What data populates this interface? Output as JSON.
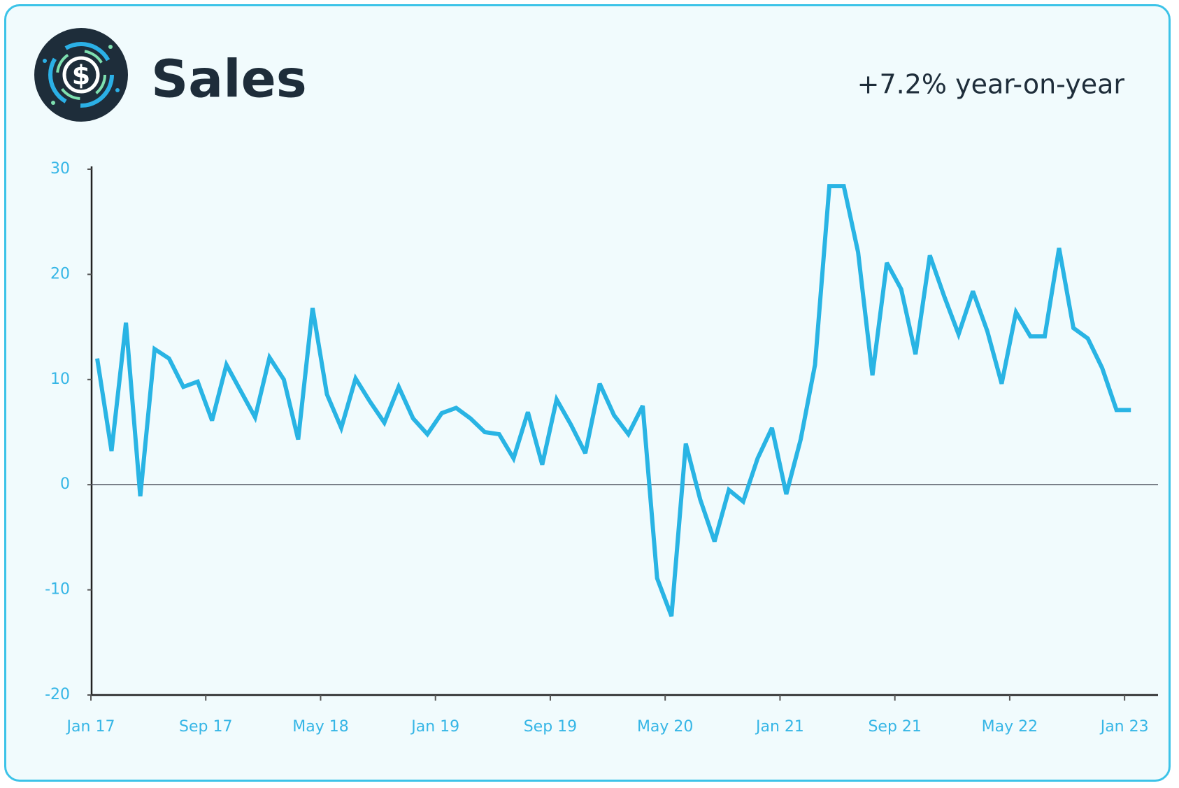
{
  "chart_data": {
    "type": "line",
    "title": "Sales",
    "subtitle": "+7.2% year-on-year",
    "categories": [
      "Jan 17",
      null,
      null,
      null,
      null,
      null,
      null,
      null,
      "Sep 17",
      null,
      null,
      null,
      null,
      null,
      null,
      null,
      "May 18",
      null,
      null,
      null,
      null,
      null,
      null,
      null,
      "Jan 19",
      null,
      null,
      null,
      null,
      null,
      null,
      null,
      "Sep 19",
      null,
      null,
      null,
      null,
      null,
      null,
      null,
      "May 20",
      null,
      null,
      null,
      null,
      null,
      null,
      null,
      "Jan 21",
      null,
      null,
      null,
      null,
      null,
      null,
      null,
      "Sep 21",
      null,
      null,
      null,
      null,
      null,
      null,
      null,
      "May 22",
      null,
      null,
      null,
      null,
      null,
      null,
      null,
      "Jan 23"
    ],
    "series": [
      {
        "name": "Sales",
        "color": "#29b4e4",
        "values": [
          12.0,
          3.2,
          15.4,
          -1.1,
          12.9,
          12.0,
          9.3,
          9.8,
          6.1,
          11.4,
          8.9,
          6.4,
          12.1,
          10.0,
          4.3,
          16.8,
          8.6,
          5.4,
          10.1,
          7.9,
          5.9,
          9.3,
          6.3,
          4.8,
          6.8,
          7.3,
          6.3,
          5.0,
          4.8,
          2.5,
          6.9,
          1.9,
          8.1,
          5.7,
          3.0,
          9.6,
          6.6,
          4.8,
          7.5,
          -8.9,
          -12.5,
          3.9,
          -1.4,
          -5.4,
          -0.5,
          -1.6,
          2.5,
          5.4,
          -0.9,
          4.3,
          11.4,
          28.4,
          28.4,
          22.1,
          10.4,
          21.1,
          18.6,
          12.4,
          21.8,
          17.9,
          14.3,
          18.4,
          14.6,
          9.6,
          16.4,
          14.1,
          14.1,
          22.5,
          14.9,
          13.9,
          11.1,
          7.1,
          7.1
        ]
      }
    ],
    "ylim": [
      -20,
      30
    ],
    "yticks": [
      -20,
      -10,
      0,
      10,
      20,
      30
    ]
  }
}
